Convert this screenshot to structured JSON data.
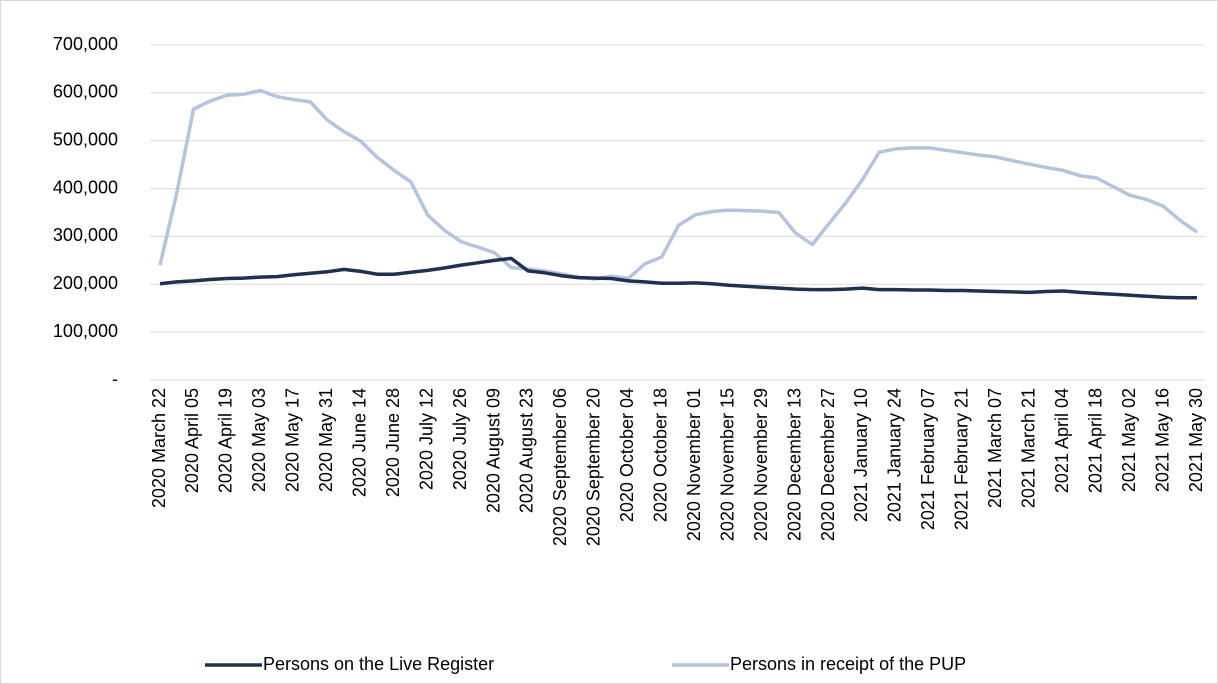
{
  "chart_data": {
    "type": "line",
    "categories": [
      "2020 March 22",
      null,
      "2020 April 05",
      null,
      "2020 April 19",
      null,
      "2020 May 03",
      null,
      "2020 May 17",
      null,
      "2020 May 31",
      null,
      "2020 June 14",
      null,
      "2020 June 28",
      null,
      "2020 July 12",
      null,
      "2020 July 26",
      null,
      "2020 August 09",
      null,
      "2020 August 23",
      null,
      "2020 September 06",
      null,
      "2020 September 20",
      null,
      "2020 October 04",
      null,
      "2020 October 18",
      null,
      "2020 November 01",
      null,
      "2020 November 15",
      null,
      "2020 November 29",
      null,
      "2020 December 13",
      null,
      "2020 December 27",
      null,
      "2021 January 10",
      null,
      "2021 January 24",
      null,
      "2021 February 07",
      null,
      "2021 February 21",
      null,
      "2021 March 07",
      null,
      "2021 March 21",
      null,
      "2021 April 04",
      null,
      "2021 April 18",
      null,
      "2021 May 02",
      null,
      "2021 May 16",
      null,
      "2021 May 30"
    ],
    "series": [
      {
        "name": "Persons on the Live Register",
        "color": "#1f3050",
        "values": [
          201000,
          205000,
          207000,
          210000,
          212000,
          213000,
          215000,
          216000,
          220000,
          223000,
          226000,
          231000,
          227000,
          221000,
          221000,
          225000,
          229000,
          234000,
          240000,
          245000,
          250000,
          254000,
          228000,
          224000,
          218000,
          214000,
          213000,
          212000,
          207000,
          205000,
          202000,
          202000,
          203000,
          201000,
          198000,
          196000,
          194000,
          192000,
          190000,
          189000,
          189000,
          190000,
          192000,
          189000,
          189000,
          188000,
          188000,
          187000,
          187000,
          186000,
          185000,
          184000,
          183000,
          185000,
          186000,
          183000,
          181000,
          179000,
          177000,
          175000,
          173000,
          172000,
          172000
        ]
      },
      {
        "name": "Persons in receipt of the PUP",
        "color": "#b4c3de",
        "values": [
          240000,
          390000,
          566000,
          583000,
          595000,
          597000,
          605000,
          592000,
          586000,
          581000,
          543000,
          519000,
          499000,
          465000,
          438000,
          414000,
          345000,
          313000,
          289000,
          278000,
          266000,
          235000,
          232000,
          228000,
          222000,
          215000,
          211000,
          217000,
          212000,
          243000,
          257000,
          323000,
          345000,
          352000,
          355000,
          354000,
          353000,
          350000,
          307000,
          283000,
          327000,
          370000,
          419000,
          476000,
          483000,
          485000,
          485000,
          480000,
          475000,
          470000,
          466000,
          458000,
          451000,
          444000,
          438000,
          427000,
          422000,
          404000,
          386000,
          377000,
          363000,
          333000,
          309000
        ]
      }
    ],
    "ylim": [
      0,
      700000
    ],
    "yticks": [
      {
        "value": 0,
        "label": "-"
      },
      {
        "value": 100000,
        "label": "100,000"
      },
      {
        "value": 200000,
        "label": "200,000"
      },
      {
        "value": 300000,
        "label": "300,000"
      },
      {
        "value": 400000,
        "label": "400,000"
      },
      {
        "value": 500000,
        "label": "500,000"
      },
      {
        "value": 600000,
        "label": "600,000"
      },
      {
        "value": 700000,
        "label": "700,000"
      }
    ],
    "grid": true,
    "legend": "bottom"
  }
}
